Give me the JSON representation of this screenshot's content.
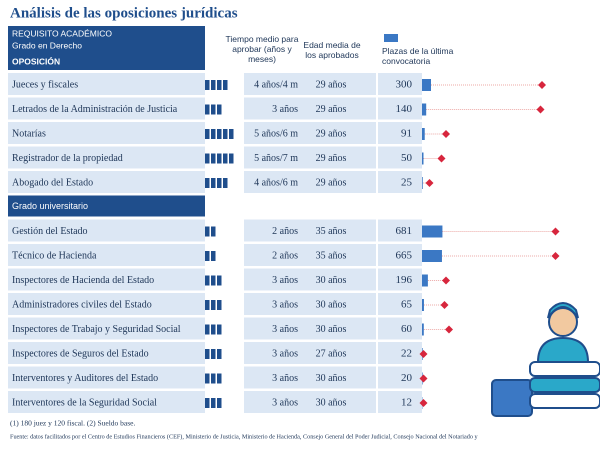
{
  "header": {
    "title": "Análisis de las oposiciones jurídicas",
    "req_label": "REQUISITO ACADÉMICO",
    "req_value": "Grado en Derecho",
    "col_name": "OPOSICIÓN",
    "col_time": "Tiempo medio para aprobar (años y meses)",
    "col_age": "Edad media de los aprobados",
    "col_plazas": "Plazas de la última convocatoria"
  },
  "sections": [
    {
      "title": null,
      "rows": [
        {
          "name": "Jueces y fiscales",
          "time": "4 años/4 m",
          "years": 4,
          "age": "29 años",
          "plazas": 300,
          "marker": 80
        },
        {
          "name": "Letrados de la Administración de Justicia",
          "time": "3 años",
          "years": 3,
          "age": "29 años",
          "plazas": 140,
          "marker": 79
        },
        {
          "name": "Notarías",
          "time": "5 años/6 m",
          "years": 5,
          "age": "29 años",
          "plazas": 91,
          "marker": 16
        },
        {
          "name": "Registrador de la propiedad",
          "time": "5 años/7 m",
          "years": 5,
          "age": "29 años",
          "plazas": 50,
          "marker": 13
        },
        {
          "name": "Abogado del Estado",
          "time": "4 años/6 m",
          "years": 4,
          "age": "29 años",
          "plazas": 25,
          "marker": 5
        }
      ]
    },
    {
      "title": "Grado universitario",
      "rows": [
        {
          "name": "Gestión del Estado",
          "time": "2 años",
          "years": 2,
          "age": "35 años",
          "plazas": 681,
          "marker": 89
        },
        {
          "name": "Técnico de Hacienda",
          "time": "2 años",
          "years": 2,
          "age": "35 años",
          "plazas": 665,
          "marker": 89
        },
        {
          "name": "Inspectores de Hacienda del Estado",
          "time": "3 años",
          "years": 3,
          "age": "30 años",
          "plazas": 196,
          "marker": 16
        },
        {
          "name": "Administradores civiles del Estado",
          "time": "3 años",
          "years": 3,
          "age": "30 años",
          "plazas": 65,
          "marker": 15
        },
        {
          "name": "Inspectores de Trabajo y Seguridad Social",
          "time": "3 años",
          "years": 3,
          "age": "30 años",
          "plazas": 60,
          "marker": 18
        },
        {
          "name": "Inspectores de Seguros del Estado",
          "time": "3 años",
          "years": 3,
          "age": "27 años",
          "plazas": 22,
          "marker": 1
        },
        {
          "name": "Interventores y Auditores del Estado",
          "time": "3 años",
          "years": 3,
          "age": "30 años",
          "plazas": 20,
          "marker": 1
        },
        {
          "name": "Interventores de la Seguridad Social",
          "time": "3 años",
          "years": 3,
          "age": "30 años",
          "plazas": 12,
          "marker": 1
        }
      ]
    }
  ],
  "footer": {
    "note": "(1) 180 juez y 120 fiscal. (2) Sueldo base.",
    "source": "Fuente: datos facilitados por el Centro de Estudios Financieros (CEF), Ministerio de Justicia, Ministerio de Hacienda, Consejo General del Poder Judicial, Consejo Nacional del Notariado y"
  }
}
